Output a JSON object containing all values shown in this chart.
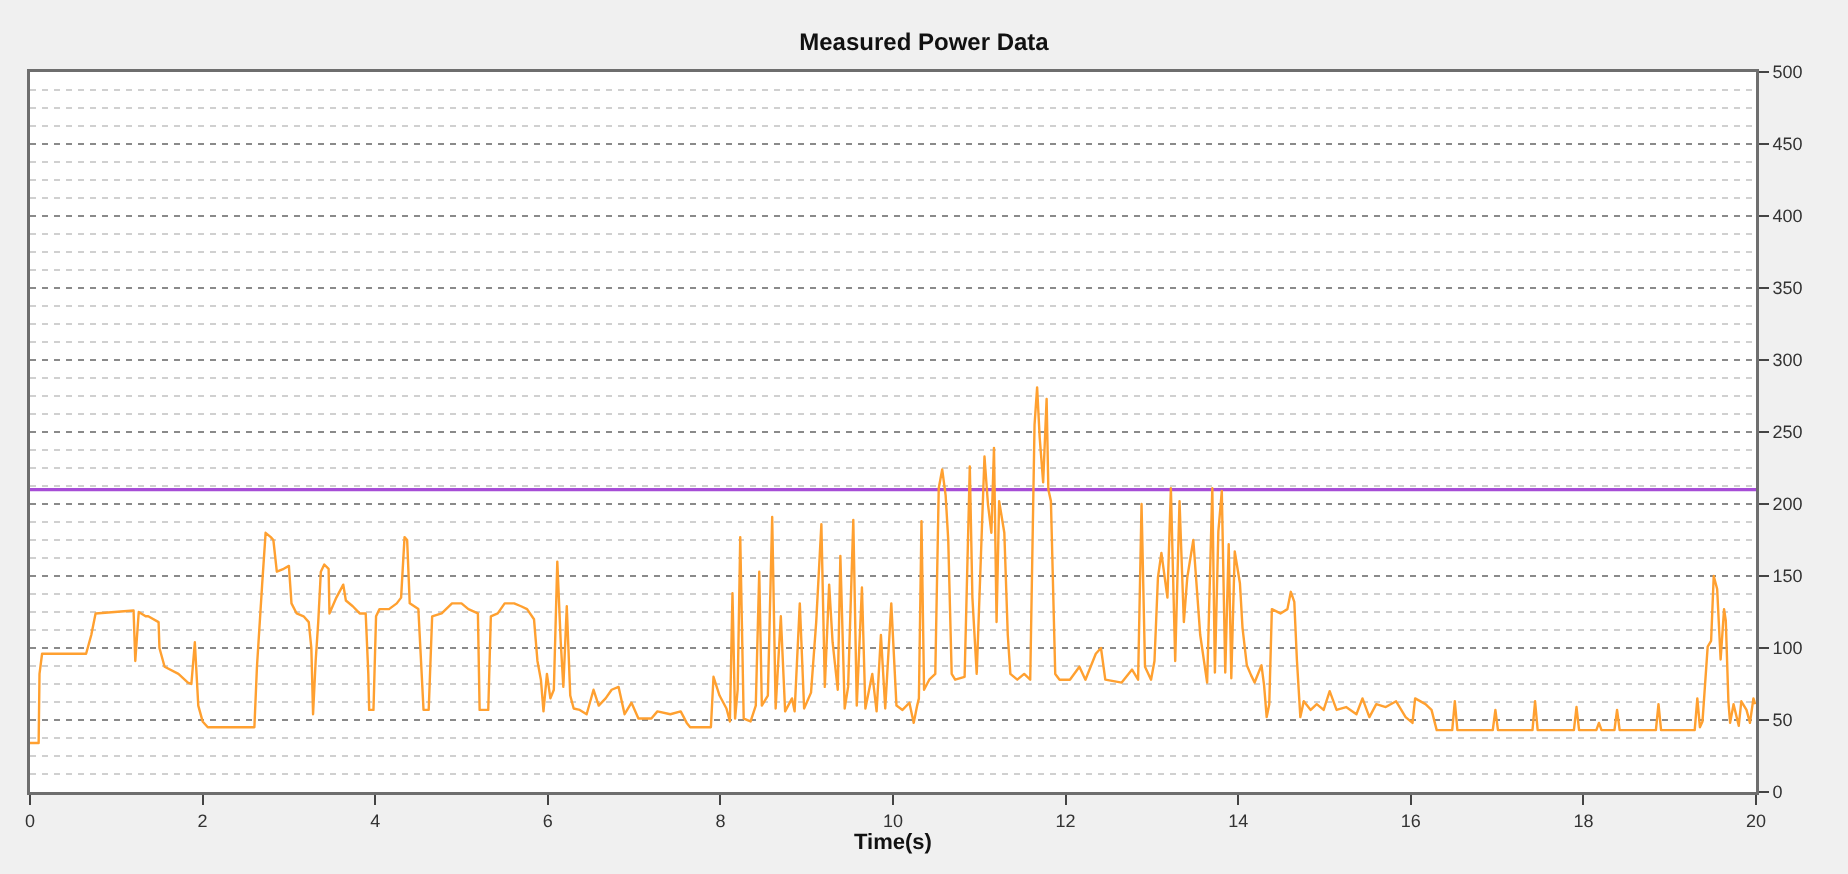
{
  "chart_data": {
    "type": "line",
    "title": "Measured Power Data",
    "xlabel": "Time(s)",
    "x": [
      0,
      0.1,
      0.11,
      0.14,
      0.65,
      0.71,
      0.76,
      1.2,
      1.22,
      1.26,
      1.34,
      1.37,
      1.49,
      1.5,
      1.56,
      1.72,
      1.83,
      1.87,
      1.91,
      1.95,
      2.0,
      2.06,
      2.6,
      2.63,
      2.69,
      2.73,
      2.79,
      2.82,
      2.86,
      2.94,
      3.0,
      3.03,
      3.09,
      3.17,
      3.23,
      3.26,
      3.28,
      3.31,
      3.34,
      3.37,
      3.41,
      3.46,
      3.47,
      3.55,
      3.63,
      3.66,
      3.74,
      3.82,
      3.89,
      3.92,
      3.93,
      3.98,
      4.01,
      4.05,
      4.16,
      4.25,
      4.3,
      4.34,
      4.37,
      4.4,
      4.5,
      4.56,
      4.62,
      4.66,
      4.77,
      4.89,
      5.0,
      5.08,
      5.19,
      5.21,
      5.31,
      5.34,
      5.42,
      5.5,
      5.61,
      5.69,
      5.76,
      5.84,
      5.88,
      5.92,
      5.95,
      5.99,
      6.03,
      6.07,
      6.11,
      6.15,
      6.18,
      6.22,
      6.26,
      6.3,
      6.37,
      6.45,
      6.53,
      6.59,
      6.67,
      6.74,
      6.82,
      6.89,
      6.97,
      7.05,
      7.2,
      7.27,
      7.42,
      7.54,
      7.61,
      7.65,
      7.89,
      7.92,
      7.99,
      8.07,
      8.11,
      8.14,
      8.17,
      8.2,
      8.23,
      8.27,
      8.35,
      8.41,
      8.45,
      8.48,
      8.55,
      8.6,
      8.64,
      8.7,
      8.75,
      8.83,
      8.86,
      8.92,
      8.97,
      9.05,
      9.11,
      9.17,
      9.21,
      9.26,
      9.3,
      9.36,
      9.39,
      9.44,
      9.48,
      9.54,
      9.58,
      9.64,
      9.68,
      9.76,
      9.81,
      9.86,
      9.91,
      9.98,
      10.04,
      10.11,
      10.19,
      10.24,
      10.28,
      10.3,
      10.33,
      10.36,
      10.42,
      10.49,
      10.53,
      10.57,
      10.61,
      10.64,
      10.68,
      10.72,
      10.83,
      10.89,
      10.92,
      10.97,
      11.02,
      11.06,
      11.1,
      11.14,
      11.17,
      11.2,
      11.23,
      11.29,
      11.33,
      11.36,
      11.44,
      11.52,
      11.59,
      11.64,
      11.67,
      11.7,
      11.74,
      11.78,
      11.8,
      11.83,
      11.88,
      11.93,
      12.05,
      12.16,
      12.23,
      12.35,
      12.41,
      12.46,
      12.65,
      12.77,
      12.84,
      12.88,
      12.92,
      12.99,
      13.03,
      13.07,
      13.11,
      13.18,
      13.22,
      13.27,
      13.32,
      13.37,
      13.41,
      13.48,
      13.56,
      13.64,
      13.7,
      13.73,
      13.77,
      13.81,
      13.85,
      13.89,
      13.92,
      13.96,
      14.02,
      14.05,
      14.1,
      14.15,
      14.19,
      14.27,
      14.3,
      14.33,
      14.36,
      14.39,
      14.49,
      14.57,
      14.61,
      14.65,
      14.68,
      14.72,
      14.76,
      14.84,
      14.91,
      14.99,
      15.06,
      15.14,
      15.25,
      15.37,
      15.44,
      15.52,
      15.6,
      15.71,
      15.83,
      15.94,
      16.02,
      16.05,
      16.17,
      16.24,
      16.3,
      16.48,
      16.51,
      16.54,
      16.95,
      16.98,
      17.01,
      17.41,
      17.44,
      17.47,
      17.89,
      17.92,
      17.95,
      18.15,
      18.18,
      18.21,
      18.36,
      18.39,
      18.42,
      18.84,
      18.87,
      18.9,
      19.29,
      19.32,
      19.35,
      19.38,
      19.44,
      19.48,
      19.51,
      19.55,
      19.59,
      19.63,
      19.65,
      19.68,
      19.7,
      19.74,
      19.8,
      19.83,
      19.89,
      19.93,
      19.97,
      19.99
    ],
    "series": [
      {
        "color": "#ffa030",
        "values": [
          34,
          34,
          82,
          96,
          96,
          109,
          124,
          126,
          91,
          125,
          122,
          122,
          118,
          100,
          87,
          82,
          76,
          75,
          104,
          60,
          49,
          45,
          45,
          87,
          144,
          180,
          177,
          175,
          153,
          155,
          157,
          131,
          124,
          122,
          118,
          100,
          54,
          91,
          118,
          153,
          158,
          155,
          124,
          135,
          144,
          133,
          129,
          124,
          124,
          82,
          57,
          57,
          122,
          127,
          127,
          131,
          135,
          177,
          175,
          131,
          127,
          57,
          57,
          122,
          124,
          131,
          131,
          127,
          124,
          57,
          57,
          122,
          124,
          131,
          131,
          129,
          127,
          120,
          91,
          78,
          56,
          82,
          65,
          71,
          160,
          104,
          73,
          129,
          67,
          58,
          57,
          54,
          71,
          60,
          65,
          71,
          73,
          54,
          62,
          51,
          51,
          56,
          54,
          56,
          48,
          45,
          45,
          80,
          67,
          58,
          49,
          138,
          51,
          71,
          177,
          51,
          49,
          60,
          153,
          60,
          67,
          191,
          58,
          122,
          56,
          65,
          56,
          131,
          58,
          69,
          118,
          186,
          73,
          144,
          104,
          71,
          164,
          58,
          73,
          189,
          60,
          142,
          58,
          82,
          56,
          109,
          58,
          131,
          60,
          57,
          62,
          48,
          60,
          65,
          188,
          71,
          78,
          82,
          211,
          224,
          206,
          175,
          82,
          78,
          80,
          226,
          135,
          82,
          166,
          233,
          200,
          180,
          239,
          118,
          202,
          180,
          109,
          82,
          78,
          82,
          78,
          255,
          281,
          246,
          215,
          273,
          210,
          202,
          82,
          78,
          78,
          87,
          78,
          96,
          100,
          78,
          76,
          85,
          78,
          200,
          87,
          78,
          91,
          149,
          166,
          135,
          211,
          91,
          202,
          118,
          149,
          175,
          109,
          76,
          211,
          83,
          181,
          209,
          83,
          172,
          79,
          167,
          145,
          114,
          88,
          81,
          76,
          88,
          74,
          52,
          61,
          127,
          124,
          127,
          139,
          132,
          92,
          52,
          63,
          57,
          61,
          57,
          70,
          57,
          59,
          54,
          65,
          52,
          61,
          59,
          63,
          52,
          48,
          65,
          61,
          57,
          43,
          43,
          63,
          43,
          43,
          57,
          43,
          43,
          63,
          43,
          43,
          59,
          43,
          43,
          48,
          43,
          43,
          57,
          43,
          43,
          61,
          43,
          43,
          65,
          45,
          49,
          101,
          105,
          150,
          141,
          92,
          127,
          119,
          63,
          48,
          61,
          46,
          63,
          57,
          48,
          65,
          61
        ]
      }
    ],
    "xlim": [
      0,
      20
    ],
    "xticks": [
      0,
      2,
      4,
      6,
      8,
      10,
      12,
      14,
      16,
      18,
      20
    ],
    "ylim": [
      0,
      500
    ],
    "yticks": [
      0,
      50,
      100,
      150,
      200,
      250,
      300,
      350,
      400,
      450,
      500
    ],
    "grid": "y",
    "ref_lines": [
      {
        "axis": "y",
        "value": 210,
        "color": "#a64dd6"
      }
    ]
  }
}
